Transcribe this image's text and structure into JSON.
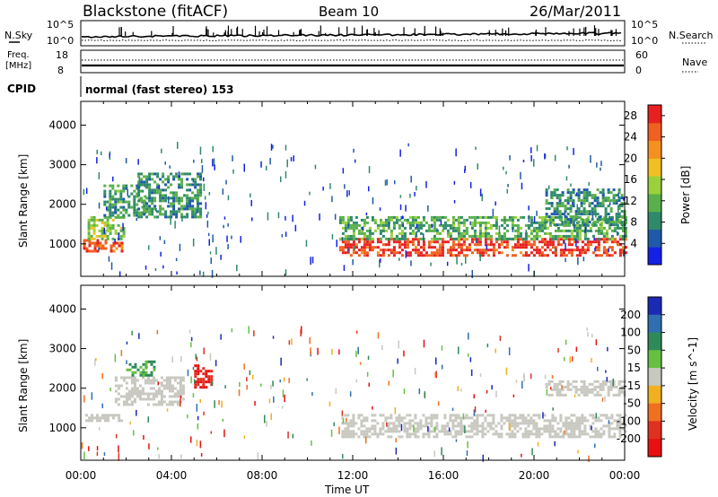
{
  "header": {
    "station": "Blackstone (fitACF)",
    "beam": "Beam 10",
    "date": "26/Mar/2011"
  },
  "params": {
    "nsky_label": "N.Sky",
    "nsearch_label": "N.Search",
    "freq_label_1": "Freq.",
    "freq_label_2": "[MHz]",
    "nave_label": "Nave",
    "cpid_label": "CPID",
    "cpid_text": "normal (fast stereo) 153",
    "noise_ticks": [
      "10^5",
      "10^0"
    ],
    "freq_ticks": [
      "18",
      "8"
    ],
    "nave_ticks": [
      "60",
      "0"
    ]
  },
  "chart_data": [
    {
      "type": "heatmap",
      "title": "",
      "xlabel": "Time UT",
      "ylabel": "Slant Range [km]",
      "xlim": [
        0,
        24
      ],
      "ylim": [
        180,
        4600
      ],
      "x_ticks": [
        "00:00",
        "04:00",
        "08:00",
        "12:00",
        "16:00",
        "20:00",
        "00:00"
      ],
      "y_ticks": [
        1000,
        2000,
        3000,
        4000
      ],
      "colorbar": {
        "label": "Power [dB]",
        "ticks": [
          4,
          8,
          12,
          16,
          20,
          24,
          28
        ],
        "range": [
          0,
          30
        ],
        "colors": [
          "#1520e6",
          "#1f5aa8",
          "#2f8a6a",
          "#59b04a",
          "#9ad13a",
          "#f0c020",
          "#f59020",
          "#f06020",
          "#e82020"
        ]
      },
      "echo_bands": [
        {
          "t": [
            0.1,
            1.8
          ],
          "range": [
            820,
            1120
          ],
          "power": 26
        },
        {
          "t": [
            0.3,
            1.9
          ],
          "range": [
            1120,
            1700
          ],
          "power": 14
        },
        {
          "t": [
            1.0,
            2.9
          ],
          "range": [
            1700,
            2500
          ],
          "power": 10
        },
        {
          "t": [
            2.5,
            5.3
          ],
          "range": [
            1700,
            2800
          ],
          "power": 9
        },
        {
          "t": [
            11.4,
            24
          ],
          "range": [
            700,
            1150
          ],
          "power": 27
        },
        {
          "t": [
            11.4,
            24
          ],
          "range": [
            1150,
            1700
          ],
          "power": 11
        },
        {
          "t": [
            20.5,
            24
          ],
          "range": [
            1500,
            2400
          ],
          "power": 9
        }
      ]
    },
    {
      "type": "heatmap",
      "title": "",
      "xlabel": "Time UT",
      "ylabel": "Slant Range [km]",
      "xlim": [
        0,
        24
      ],
      "ylim": [
        180,
        4600
      ],
      "x_ticks": [
        "00:00",
        "04:00",
        "08:00",
        "12:00",
        "16:00",
        "20:00",
        "00:00"
      ],
      "y_ticks": [
        1000,
        2000,
        3000,
        4000
      ],
      "colorbar": {
        "label": "Velocity [m s^-1]",
        "ticks": [
          200,
          100,
          50,
          15,
          -15,
          -50,
          -100,
          -200
        ],
        "colors": [
          "#1a2ab5",
          "#2f6fb0",
          "#2f8a5a",
          "#66c040",
          "#c8c8c0",
          "#f0b020",
          "#f07020",
          "#e03020",
          "#e81010"
        ]
      },
      "velocity_regions": [
        {
          "t": [
            0.2,
            1.8
          ],
          "range": [
            1150,
            1350
          ],
          "velocity": 0
        },
        {
          "t": [
            1.5,
            4.5
          ],
          "range": [
            1600,
            2300
          ],
          "velocity": 0
        },
        {
          "t": [
            2.0,
            3.3
          ],
          "range": [
            2300,
            2700
          ],
          "velocity": 40
        },
        {
          "t": [
            5.0,
            5.8
          ],
          "range": [
            2000,
            2600
          ],
          "velocity": -150
        },
        {
          "t": [
            11.5,
            24
          ],
          "range": [
            750,
            1350
          ],
          "velocity": 0
        },
        {
          "t": [
            20.5,
            24
          ],
          "range": [
            1800,
            2200
          ],
          "velocity": 0
        }
      ]
    }
  ]
}
